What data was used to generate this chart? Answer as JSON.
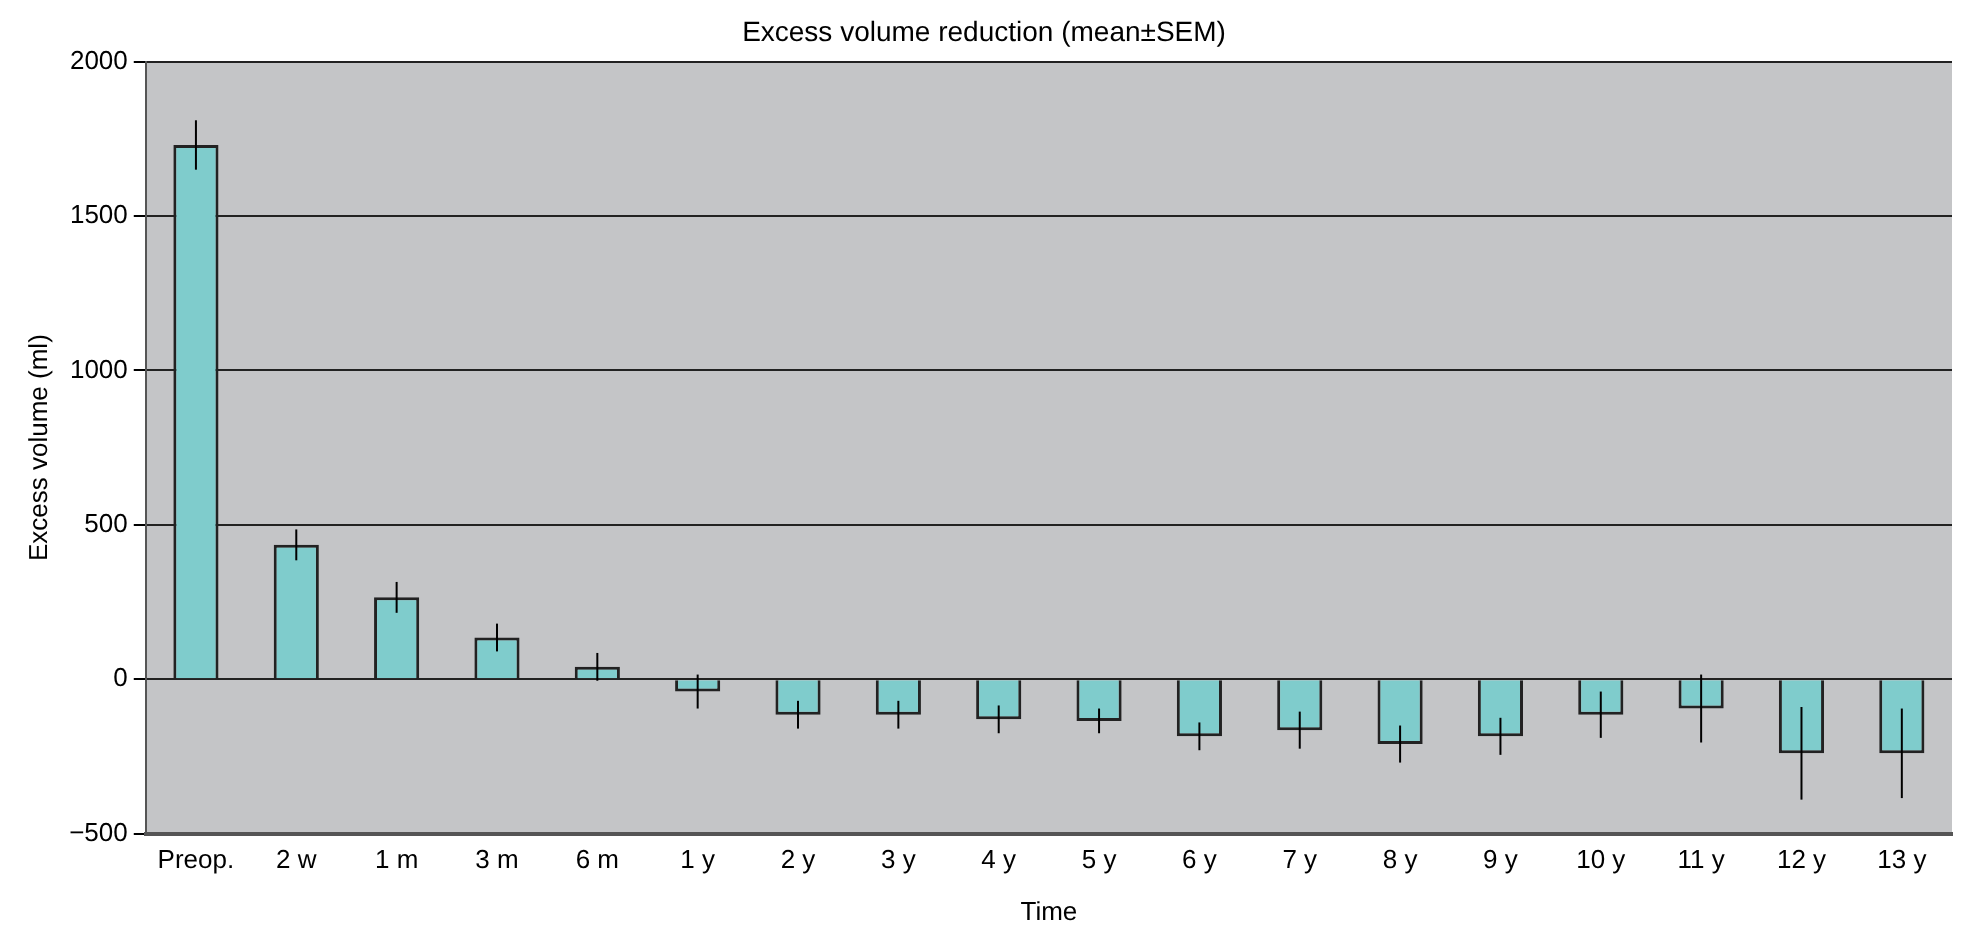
{
  "chart_data": {
    "type": "bar",
    "title": "Excess volume reduction (mean±SEM)",
    "xlabel": "Time",
    "ylabel": "Excess volume (ml)",
    "categories": [
      "Preop.",
      "2 w",
      "1 m",
      "3 m",
      "6 m",
      "1 y",
      "2 y",
      "3 y",
      "4 y",
      "5 y",
      "6 y",
      "7 y",
      "8 y",
      "9 y",
      "10 y",
      "11 y",
      "12 y",
      "13 y"
    ],
    "values": [
      1730,
      435,
      265,
      135,
      40,
      -40,
      -115,
      -115,
      -130,
      -135,
      -185,
      -165,
      -210,
      -185,
      -115,
      -95,
      -240,
      -240
    ],
    "errors": [
      80,
      50,
      50,
      45,
      45,
      55,
      45,
      45,
      45,
      40,
      45,
      60,
      60,
      60,
      75,
      110,
      150,
      145
    ],
    "color": "#7fcccc",
    "ylim": [
      -500,
      2000
    ],
    "yticks": [
      -500,
      0,
      500,
      1000,
      1500,
      2000
    ],
    "grid": "y",
    "legend": false
  }
}
